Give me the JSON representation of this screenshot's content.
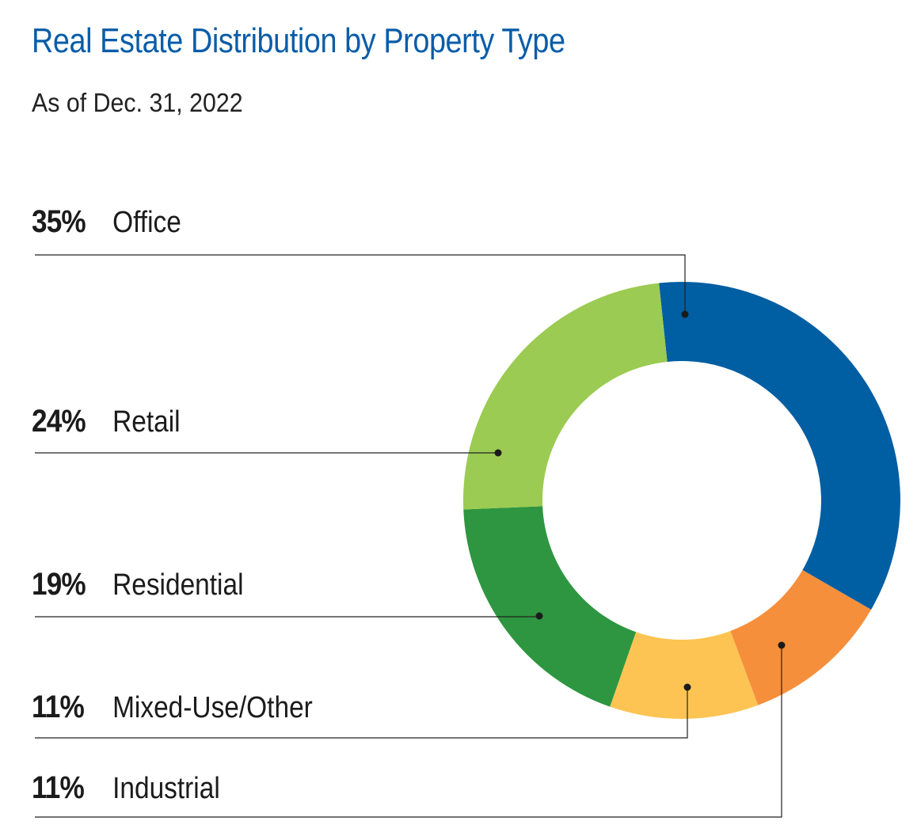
{
  "chart_data": {
    "type": "pie",
    "title": "Real Estate Distribution by Property Type",
    "subtitle": "As of Dec. 31, 2022",
    "categories": [
      "Office",
      "Industrial",
      "Mixed-Use/Other",
      "Residential",
      "Retail"
    ],
    "values": [
      35,
      11,
      11,
      19,
      24
    ],
    "labels": [
      "35%",
      "11%",
      "11%",
      "19%",
      "24%"
    ],
    "colors": [
      "#005ea2",
      "#f58f3b",
      "#fdc453",
      "#2e9640",
      "#9bcb52"
    ],
    "donut": true
  },
  "legend": [
    {
      "pct": "35%",
      "name": "Office"
    },
    {
      "pct": "24%",
      "name": "Retail"
    },
    {
      "pct": "19%",
      "name": "Residential"
    },
    {
      "pct": "11%",
      "name": "Mixed-Use/Other"
    },
    {
      "pct": "11%",
      "name": "Industrial"
    }
  ],
  "colors": {
    "title": "#0a5da8",
    "text": "#1b1b1b",
    "leader": "#222222"
  }
}
